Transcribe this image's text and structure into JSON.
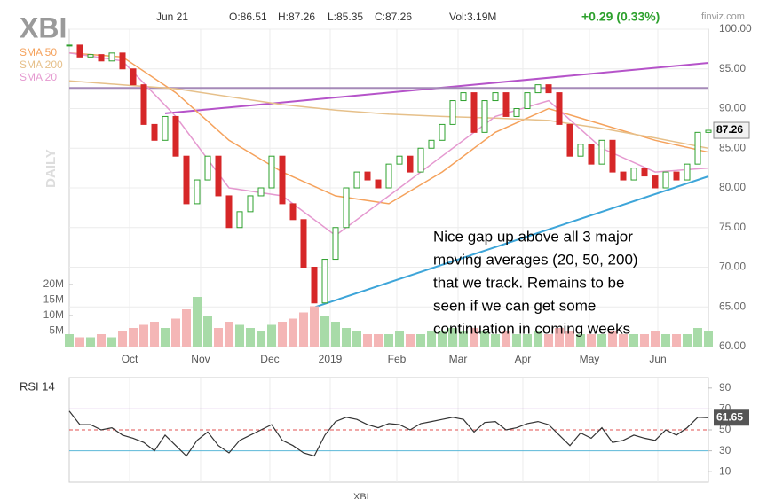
{
  "header": {
    "symbol": "XBI",
    "date": "Jun 21",
    "open": "O:86.51",
    "high": "H:87.26",
    "low": "L:85.35",
    "close": "C:87.26",
    "volume": "Vol:3.19M",
    "change": "+0.29 (0.33%)",
    "source": "finviz.com",
    "timeframe": "DAILY",
    "footer": "XBI"
  },
  "annotation": [
    "Nice gap up above all 3 major",
    "moving averages (20, 50, 200)",
    "that we track. Remains to be",
    "seen if we can get some",
    "continuation in coming weeks"
  ],
  "chart_data": [
    {
      "type": "candlestick",
      "up_color": "#2ca02c",
      "down_color": "#d62728",
      "grid": true,
      "x": [
        0,
        1,
        2,
        3,
        4,
        5,
        6,
        7,
        8,
        9,
        10,
        11,
        12,
        13,
        14,
        15,
        16,
        17,
        18,
        19,
        20,
        21,
        22,
        23,
        24,
        25,
        26,
        27,
        28,
        29,
        30,
        31,
        32,
        33,
        34,
        35,
        36,
        37,
        38,
        39,
        40,
        41,
        42,
        43,
        44,
        45,
        46,
        47,
        48,
        49,
        50,
        51,
        52,
        53,
        54,
        55,
        56,
        57,
        58,
        59,
        60
      ],
      "values": [
        98,
        96.5,
        96.8,
        96,
        97,
        95,
        93,
        88,
        86,
        89,
        84,
        78,
        81,
        84,
        79,
        75,
        77,
        79,
        80,
        84,
        78,
        76,
        70,
        65.5,
        71,
        75,
        80,
        82,
        81,
        80,
        83,
        84,
        82,
        85,
        86,
        88,
        91,
        92,
        87,
        91,
        92,
        89,
        90,
        92,
        93,
        92,
        88,
        84,
        85.5,
        83,
        86,
        82,
        81,
        82.5,
        81.5,
        80,
        82,
        81,
        83,
        87,
        87.26
      ],
      "series": [
        {
          "name": "SMA 50",
          "color": "#f5a25c",
          "x": [
            0,
            5,
            10,
            15,
            20,
            25,
            30,
            35,
            40,
            45,
            50,
            55,
            60
          ],
          "values": [
            97,
            96.5,
            92,
            86,
            82,
            79,
            78,
            82,
            87,
            90,
            88,
            86,
            84.5
          ]
        },
        {
          "name": "SMA 200",
          "color": "#e6c08a",
          "x": [
            0,
            5,
            10,
            15,
            20,
            25,
            30,
            35,
            40,
            45,
            50,
            55,
            60
          ],
          "values": [
            93.5,
            93,
            92.5,
            91.5,
            90.5,
            89.8,
            89.3,
            89,
            88.8,
            88.5,
            87.5,
            86.3,
            85
          ]
        },
        {
          "name": "SMA 20",
          "color": "#e599d0",
          "x": [
            0,
            5,
            10,
            15,
            20,
            25,
            30,
            35,
            40,
            45,
            50,
            55,
            60
          ],
          "values": [
            97,
            96,
            89,
            80,
            79,
            74,
            79,
            84,
            89,
            91,
            85,
            82,
            82.5
          ]
        }
      ],
      "lines": [
        {
          "color": "#b553c9",
          "x": [
            9,
            60
          ],
          "values": [
            89.4,
            95.75
          ]
        },
        {
          "color": "#a58ab8",
          "x": [
            0,
            60
          ],
          "values": [
            92.6,
            92.6
          ]
        },
        {
          "color": "#3da5d9",
          "x": [
            23.1,
            60
          ],
          "values": [
            65,
            81.45
          ]
        }
      ],
      "xlim": [
        0,
        60
      ],
      "xticks": [
        {
          "value": 5.67,
          "label": "Oct"
        },
        {
          "value": 12.33,
          "label": "Nov"
        },
        {
          "value": 18.83,
          "label": "Dec"
        },
        {
          "value": 24.5,
          "label": "2019"
        },
        {
          "value": 30.75,
          "label": "Feb"
        },
        {
          "value": 36.5,
          "label": "Mar"
        },
        {
          "value": 42.58,
          "label": "Apr"
        },
        {
          "value": 48.83,
          "label": "May"
        },
        {
          "value": 55.25,
          "label": "Jun"
        }
      ],
      "ylim": [
        60,
        100
      ],
      "yticks": [
        {
          "value": 60,
          "label": "60.00"
        },
        {
          "value": 65,
          "label": "65.00"
        },
        {
          "value": 70,
          "label": "70.00"
        },
        {
          "value": 75,
          "label": "75.00"
        },
        {
          "value": 80,
          "label": "80.00"
        },
        {
          "value": 85,
          "label": "85.00"
        },
        {
          "value": 90,
          "label": "90.00"
        },
        {
          "value": 95,
          "label": "95.00"
        },
        {
          "value": 100,
          "label": "100.00"
        }
      ]
    },
    {
      "type": "bar",
      "up_color": "#a8dba8",
      "down_color": "#f4b6b6",
      "values": [
        4,
        3,
        3,
        4,
        3,
        5,
        6,
        7,
        8,
        6,
        9,
        12,
        16,
        10,
        6,
        8,
        7,
        6,
        5,
        7,
        8,
        9,
        11,
        13,
        10,
        8,
        6,
        5,
        4,
        4,
        4,
        5,
        4,
        4,
        5,
        5,
        6,
        5,
        6,
        5,
        4,
        5,
        4,
        4,
        5,
        4,
        6,
        5,
        4,
        4,
        4,
        5,
        4,
        4,
        4,
        5,
        4,
        4,
        4,
        6,
        5
      ],
      "ylim": [
        0,
        20
      ],
      "yticks": [
        {
          "value": 5,
          "label": "5M"
        },
        {
          "value": 10,
          "label": "10M"
        },
        {
          "value": 15,
          "label": "15M"
        },
        {
          "value": 20,
          "label": "20M"
        }
      ]
    },
    {
      "type": "line",
      "title": "RSI 14",
      "color": "#333333",
      "values": [
        68,
        55,
        55,
        50,
        52,
        45,
        42,
        38,
        30,
        45,
        35,
        25,
        40,
        48,
        35,
        28,
        40,
        45,
        50,
        55,
        40,
        35,
        28,
        25,
        45,
        58,
        62,
        60,
        55,
        52,
        56,
        55,
        50,
        56,
        58,
        60,
        62,
        60,
        48,
        57,
        58,
        50,
        52,
        56,
        58,
        55,
        45,
        35,
        47,
        42,
        52,
        38,
        40,
        45,
        42,
        40,
        50,
        45,
        52,
        62,
        61.65
      ],
      "levels": [
        {
          "value": 70,
          "color": "#b57fd0"
        },
        {
          "value": 50,
          "color": "#e05050"
        },
        {
          "value": 30,
          "color": "#5bb8d8"
        }
      ],
      "ylim": [
        0,
        100
      ],
      "yticks": [
        10,
        30,
        50,
        70,
        90
      ]
    }
  ]
}
